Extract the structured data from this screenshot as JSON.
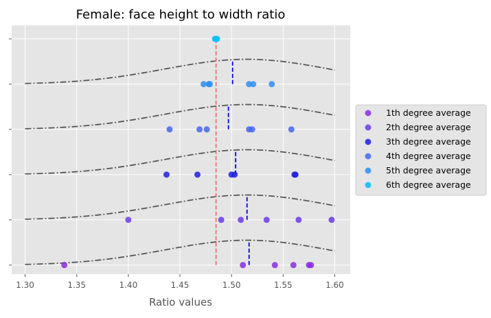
{
  "chart_data": {
    "type": "scatter",
    "title": "Female: face height to width ratio",
    "xlabel": "Ratio values",
    "ylabel": "",
    "xlim": [
      1.287,
      1.615
    ],
    "ylim": [
      -0.2,
      5.3
    ],
    "xticks": [
      1.3,
      1.35,
      1.4,
      1.45,
      1.5,
      1.55,
      1.6
    ],
    "xtick_labels": [
      "1.30",
      "1.35",
      "1.40",
      "1.45",
      "1.50",
      "1.55",
      "1.60"
    ],
    "yticks": [
      0,
      1,
      2,
      3,
      4,
      5
    ],
    "grid": true,
    "legend_position": "center-right, outside plot",
    "overall_mean": 1.485,
    "series": [
      {
        "name": "1th degree average",
        "level": 0,
        "color": "#8a2be2",
        "mean": 1.517,
        "x": [
          1.338,
          1.511,
          1.542,
          1.56,
          1.575,
          1.577
        ]
      },
      {
        "name": "2th degree average",
        "level": 1,
        "color": "#6a3be6",
        "mean": 1.515,
        "x": [
          1.4,
          1.49,
          1.509,
          1.534,
          1.565,
          1.597
        ]
      },
      {
        "name": "3th degree average",
        "level": 2,
        "color": "#2020e0",
        "mean": 1.504,
        "x": [
          1.437,
          1.467,
          1.5,
          1.503,
          1.561,
          1.562
        ]
      },
      {
        "name": "4th degree average",
        "level": 3,
        "color": "#4466ee",
        "mean": 1.497,
        "x": [
          1.44,
          1.469,
          1.476,
          1.517,
          1.52,
          1.558
        ]
      },
      {
        "name": "5th degree average",
        "level": 4,
        "color": "#2e8ef0",
        "mean": 1.501,
        "x": [
          1.473,
          1.478,
          1.479,
          1.517,
          1.521,
          1.539
        ]
      },
      {
        "name": "6th degree average",
        "level": 5,
        "color": "#00bfff",
        "mean": 1.485,
        "x": [
          1.484,
          1.485,
          1.486
        ]
      }
    ],
    "curves": {
      "mu": 1.515,
      "sigma": 0.08,
      "amplitude": 0.55,
      "color": "#555555",
      "style": "dash-dot"
    },
    "colors": {
      "background": "#e5e5e5",
      "grid": "#ffffff",
      "mean_line": "#f07070",
      "degree_mean_line": "#0000cc"
    }
  }
}
